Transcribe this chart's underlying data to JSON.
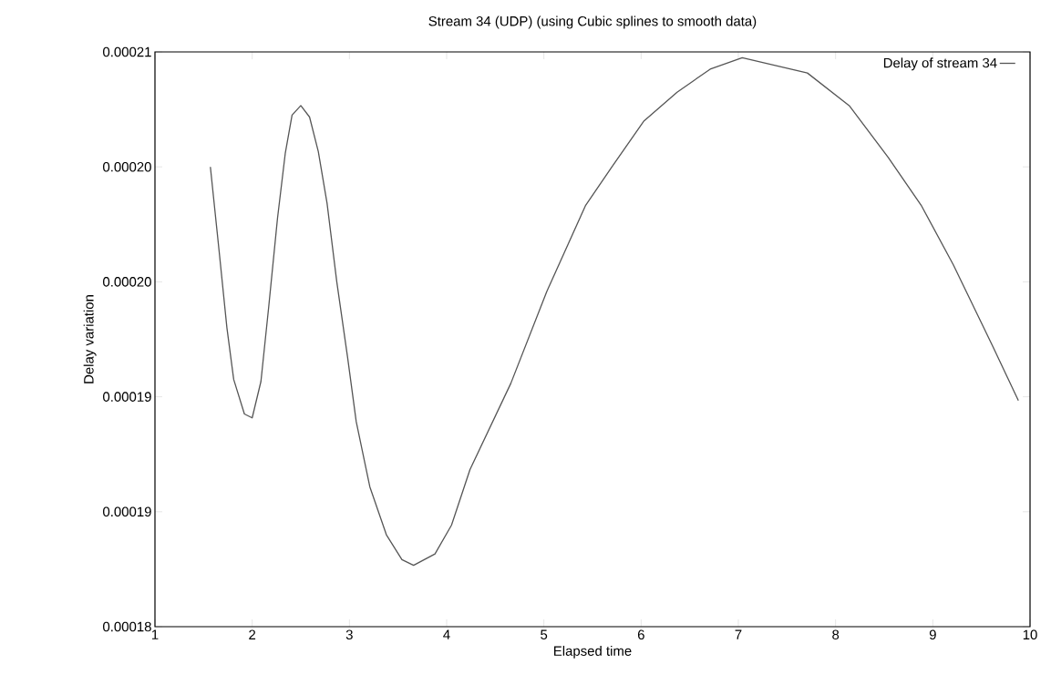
{
  "chart_data": {
    "type": "line",
    "title": "Stream 34 (UDP) (using Cubic splines to smooth data)",
    "xlabel": "Elapsed time",
    "ylabel": "Delay variation",
    "xlim": [
      1,
      10
    ],
    "xticks": [
      1,
      2,
      3,
      4,
      5,
      6,
      7,
      8,
      9,
      10
    ],
    "ylim": [
      0.00018,
      0.00021
    ],
    "yticks": [
      {
        "value": 0.00018,
        "label": "0.00018"
      },
      {
        "value": 0.000186,
        "label": "0.00019"
      },
      {
        "value": 0.000192,
        "label": "0.00019"
      },
      {
        "value": 0.000198,
        "label": "0.00020"
      },
      {
        "value": 0.000204,
        "label": "0.00020"
      },
      {
        "value": 0.00021,
        "label": "0.00021"
      }
    ],
    "legend": "top right",
    "grid": false,
    "series": [
      {
        "name": "Delay of stream 34",
        "color": "#555555",
        "x": [
          1.57,
          1.66,
          1.74,
          1.81,
          1.92,
          2.0,
          2.09,
          2.17,
          2.26,
          2.34,
          2.41,
          2.5,
          2.59,
          2.68,
          2.77,
          2.87,
          2.98,
          3.07,
          3.21,
          3.38,
          3.54,
          3.66,
          3.88,
          4.05,
          4.24,
          4.66,
          5.03,
          5.43,
          5.7,
          6.03,
          6.37,
          6.71,
          7.04,
          7.71,
          8.14,
          8.54,
          8.88,
          9.21,
          9.61,
          9.88
        ],
        "values": [
          0.000204,
          0.0001996,
          0.0001956,
          0.0001929,
          0.0001911,
          0.0001909,
          0.0001928,
          0.0001967,
          0.0002013,
          0.0002047,
          0.0002067,
          0.0002072,
          0.0002066,
          0.0002048,
          0.0002021,
          0.000198,
          0.0001941,
          0.0001907,
          0.0001873,
          0.0001848,
          0.0001835,
          0.0001832,
          0.0001838,
          0.0001853,
          0.0001882,
          0.0001927,
          0.0001975,
          0.000202,
          0.000204,
          0.0002064,
          0.0002079,
          0.0002091,
          0.0002097,
          0.0002089,
          0.0002072,
          0.0002045,
          0.000202,
          0.0001989,
          0.0001947,
          0.0001918
        ]
      }
    ]
  }
}
